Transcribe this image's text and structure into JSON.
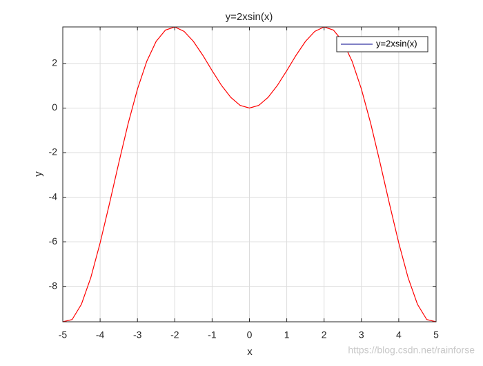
{
  "chart_data": {
    "type": "line",
    "title": "y=2xsin(x)",
    "x_label": "x",
    "y_label": "y",
    "x": [
      -5,
      -4.75,
      -4.5,
      -4.25,
      -4,
      -3.75,
      -3.5,
      -3.25,
      -3,
      -2.75,
      -2.5,
      -2.25,
      -2,
      -1.75,
      -1.5,
      -1.25,
      -1,
      -0.75,
      -0.5,
      -0.25,
      0,
      0.25,
      0.5,
      0.75,
      1,
      1.25,
      1.5,
      1.75,
      2,
      2.25,
      2.5,
      2.75,
      3,
      3.25,
      3.5,
      3.75,
      4,
      4.25,
      4.5,
      4.75,
      5
    ],
    "series": [
      {
        "name": "y=2xsin(x)",
        "color": "#ff0000",
        "values": [
          -9.59,
          -9.49,
          -8.8,
          -7.61,
          -6.05,
          -4.29,
          -2.46,
          -0.7,
          0.85,
          2.1,
          2.99,
          3.5,
          3.64,
          3.44,
          2.99,
          2.37,
          1.68,
          1.02,
          0.48,
          0.12,
          0,
          0.12,
          0.48,
          1.02,
          1.68,
          2.37,
          2.99,
          3.44,
          3.64,
          3.5,
          2.99,
          2.1,
          0.85,
          -0.7,
          -2.46,
          -4.29,
          -6.05,
          -7.61,
          -8.8,
          -9.49,
          -9.59
        ]
      }
    ],
    "legend_line_color": "#00008b",
    "legend_position": "top-right",
    "xlim": [
      -5,
      5
    ],
    "ylim": [
      -9.59,
      3.64
    ],
    "xticks": [
      -5,
      -4,
      -3,
      -2,
      -1,
      0,
      1,
      2,
      3,
      4,
      5
    ],
    "yticks": [
      -8,
      -6,
      -4,
      -2,
      0,
      2
    ],
    "grid": true,
    "watermark": "https://blog.csdn.net/rainforse"
  }
}
